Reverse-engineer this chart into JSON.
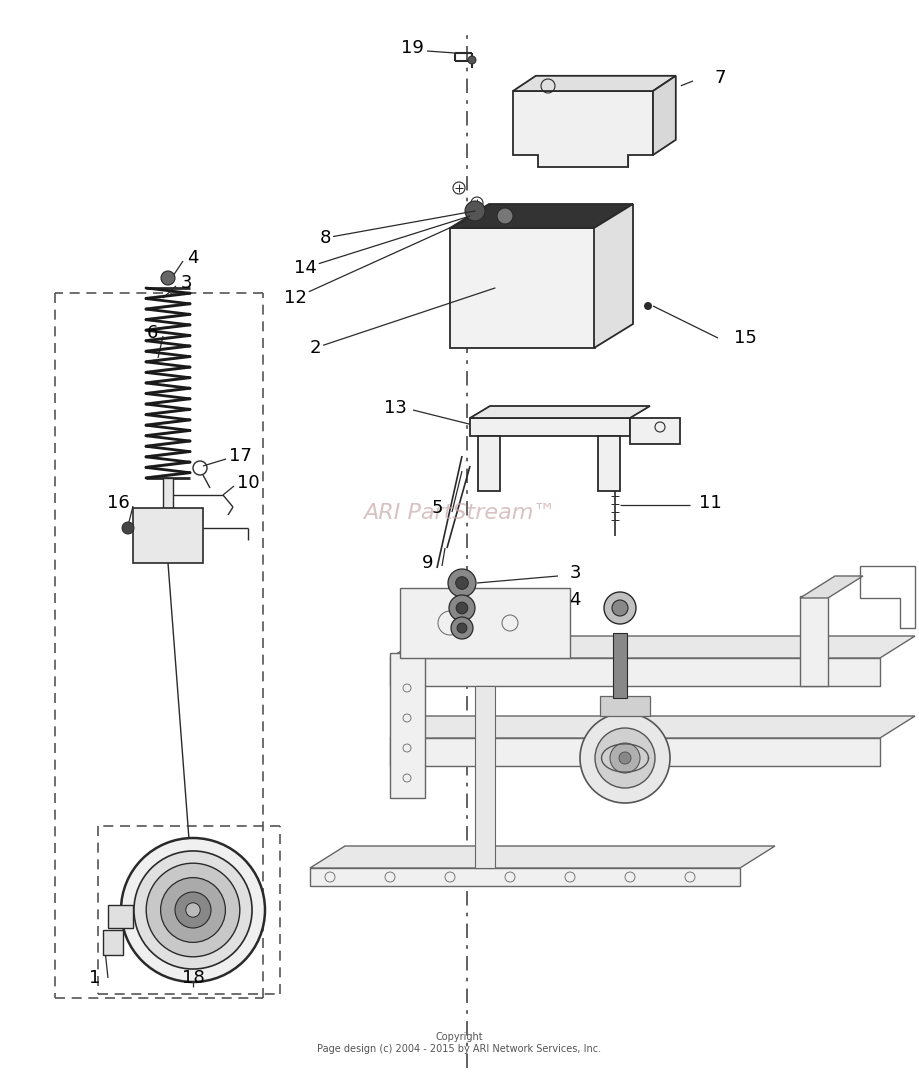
{
  "background_color": "#ffffff",
  "watermark_text": "ARI PartStream™",
  "watermark_color": "#c8a8a8",
  "copyright_text": "Copyright\nPage design (c) 2004 - 2015 by ARI Network Services, Inc.",
  "line_color": "#2a2a2a",
  "label_color": "#000000",
  "fig_width": 9.19,
  "fig_height": 10.78,
  "dpi": 100
}
